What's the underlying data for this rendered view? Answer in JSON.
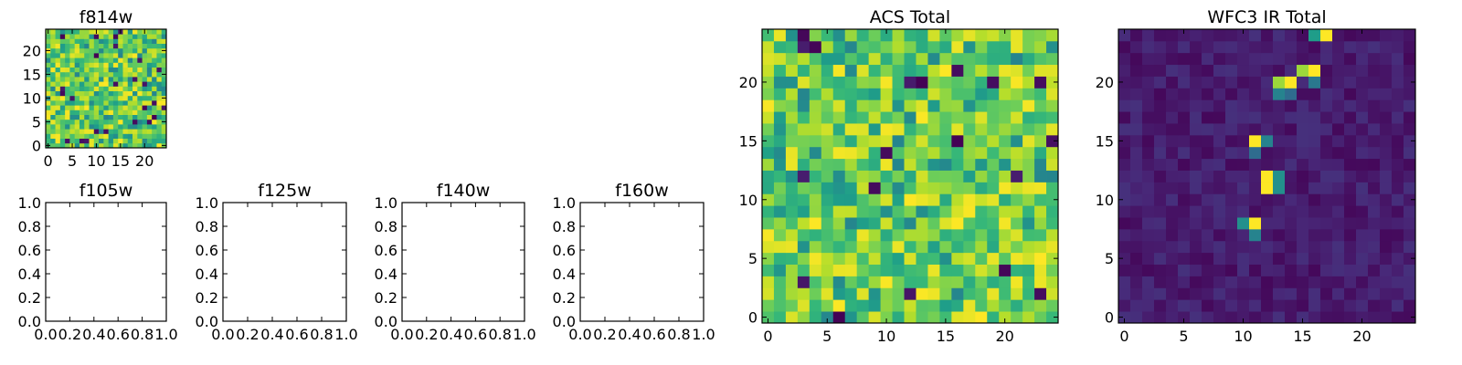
{
  "chart_data": [
    {
      "id": "f814w",
      "type": "heatmap",
      "title": "f814w",
      "grid_size": 25,
      "colormap": "viridis",
      "profile": "noise_high",
      "xticks": [
        "0",
        "5",
        "10",
        "15",
        "20"
      ],
      "yticks": [
        "0",
        "5",
        "10",
        "15",
        "20"
      ],
      "tick_values": [
        0,
        5,
        10,
        15,
        20
      ]
    },
    {
      "id": "f105w",
      "type": "empty",
      "title": "f105w",
      "xticks": [
        "0.0",
        "0.2",
        "0.4",
        "0.6",
        "0.8",
        "1.0"
      ],
      "yticks": [
        "0.0",
        "0.2",
        "0.4",
        "0.6",
        "0.8",
        "1.0"
      ],
      "tick_values": [
        0,
        0.2,
        0.4,
        0.6,
        0.8,
        1
      ]
    },
    {
      "id": "f125w",
      "type": "empty",
      "title": "f125w",
      "xticks": [
        "0.0",
        "0.2",
        "0.4",
        "0.6",
        "0.8",
        "1.0"
      ],
      "yticks": [
        "0.0",
        "0.2",
        "0.4",
        "0.6",
        "0.8",
        "1.0"
      ],
      "tick_values": [
        0,
        0.2,
        0.4,
        0.6,
        0.8,
        1
      ]
    },
    {
      "id": "f140w",
      "type": "empty",
      "title": "f140w",
      "xticks": [
        "0.0",
        "0.2",
        "0.4",
        "0.6",
        "0.8",
        "1.0"
      ],
      "yticks": [
        "0.0",
        "0.2",
        "0.4",
        "0.6",
        "0.8",
        "1.0"
      ],
      "tick_values": [
        0,
        0.2,
        0.4,
        0.6,
        0.8,
        1
      ]
    },
    {
      "id": "f160w",
      "type": "empty",
      "title": "f160w",
      "xticks": [
        "0.0",
        "0.2",
        "0.4",
        "0.6",
        "0.8",
        "1.0"
      ],
      "yticks": [
        "0.0",
        "0.2",
        "0.4",
        "0.6",
        "0.8",
        "1.0"
      ],
      "tick_values": [
        0,
        0.2,
        0.4,
        0.6,
        0.8,
        1
      ]
    },
    {
      "id": "acs-total",
      "type": "heatmap",
      "title": "ACS Total",
      "grid_size": 25,
      "colormap": "viridis",
      "profile": "noise_high",
      "xticks": [
        "0",
        "5",
        "10",
        "15",
        "20"
      ],
      "yticks": [
        "0",
        "5",
        "10",
        "15",
        "20"
      ],
      "tick_values": [
        0,
        5,
        10,
        15,
        20
      ]
    },
    {
      "id": "wfc3-ir-total",
      "type": "heatmap",
      "title": "WFC3 IR Total",
      "grid_size": 25,
      "colormap": "viridis",
      "profile": "sparse_peaks",
      "bright_pixels": [
        {
          "x": 17,
          "y": 24,
          "v": 1.0
        },
        {
          "x": 16,
          "y": 24,
          "v": 0.55
        },
        {
          "x": 14,
          "y": 20,
          "v": 1.0
        },
        {
          "x": 15,
          "y": 21,
          "v": 0.85
        },
        {
          "x": 16,
          "y": 21,
          "v": 1.0
        },
        {
          "x": 13,
          "y": 20,
          "v": 0.85
        },
        {
          "x": 13,
          "y": 19,
          "v": 0.45
        },
        {
          "x": 14,
          "y": 19,
          "v": 0.35
        },
        {
          "x": 16,
          "y": 20,
          "v": 0.4
        },
        {
          "x": 11,
          "y": 15,
          "v": 1.0
        },
        {
          "x": 12,
          "y": 15,
          "v": 0.45
        },
        {
          "x": 11,
          "y": 14,
          "v": 0.35
        },
        {
          "x": 12,
          "y": 12,
          "v": 1.0
        },
        {
          "x": 12,
          "y": 11,
          "v": 1.0
        },
        {
          "x": 13,
          "y": 12,
          "v": 0.5
        },
        {
          "x": 13,
          "y": 11,
          "v": 0.5
        },
        {
          "x": 11,
          "y": 8,
          "v": 1.0
        },
        {
          "x": 10,
          "y": 8,
          "v": 0.5
        },
        {
          "x": 11,
          "y": 7,
          "v": 0.45
        },
        {
          "x": 22,
          "y": 23,
          "v": 0.1
        },
        {
          "x": 20,
          "y": 18,
          "v": 0.08
        }
      ],
      "xticks": [
        "0",
        "5",
        "10",
        "15",
        "20"
      ],
      "yticks": [
        "0",
        "5",
        "10",
        "15",
        "20"
      ],
      "tick_values": [
        0,
        5,
        10,
        15,
        20
      ]
    }
  ]
}
